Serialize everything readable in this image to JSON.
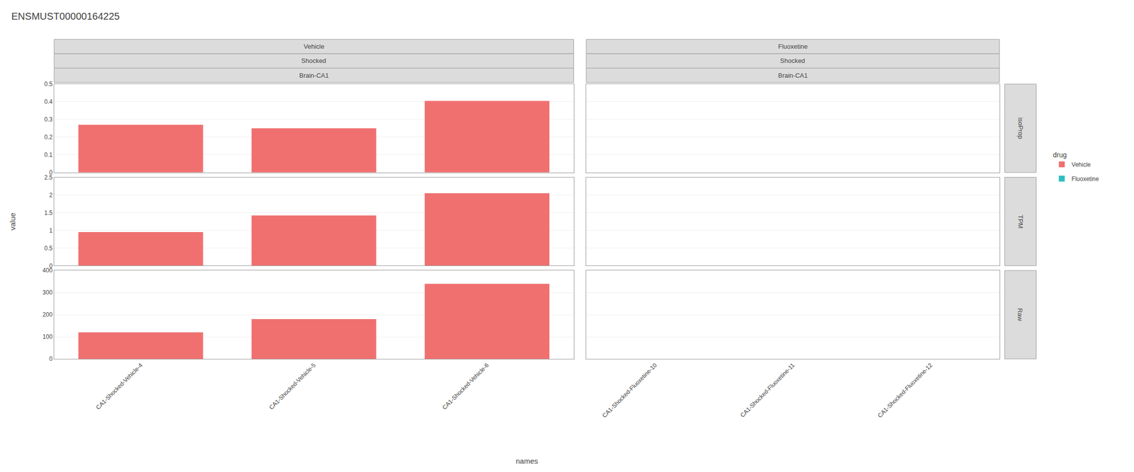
{
  "chart_data": {
    "type": "bar",
    "title": "ENSMUST00000164225",
    "xlabel": "names",
    "ylabel": "value",
    "legend_title": "drug",
    "grid": true,
    "series": [
      {
        "name": "Vehicle",
        "color": "#F07070",
        "header": [
          "Vehicle",
          "Shocked",
          "Brain-CA1"
        ],
        "categories": [
          "CA1-Shocked-Vehicle-4",
          "CA1-Shocked-Vehicle-5",
          "CA1-Shocked-Vehicle-6"
        ]
      },
      {
        "name": "Fluoxetine",
        "color": "#2ABFBF",
        "header": [
          "Fluoxetine",
          "Shocked",
          "Brain-CA1"
        ],
        "categories": [
          "CA1-Shocked-Fluoxetine-10",
          "CA1-Shocked-Fluoxetine-11",
          "CA1-Shocked-Fluoxetine-12"
        ]
      }
    ],
    "rows": [
      {
        "label": "isoProp",
        "ylim": [
          0,
          0.5
        ],
        "yticks": [
          0,
          0.1,
          0.2,
          0.3,
          0.4,
          0.5
        ],
        "values": [
          [
            0.27,
            0.25,
            0.405
          ],
          [
            0.0,
            0.0,
            0.0
          ]
        ]
      },
      {
        "label": "TPM",
        "ylim": [
          0,
          2.5
        ],
        "yticks": [
          0,
          0.5,
          1,
          1.5,
          2,
          2.5
        ],
        "values": [
          [
            0.95,
            1.42,
            2.05
          ],
          [
            0.0,
            0.0,
            0.0
          ]
        ]
      },
      {
        "label": "Raw",
        "ylim": [
          0,
          400
        ],
        "yticks": [
          0,
          100,
          200,
          300,
          400
        ],
        "values": [
          [
            120,
            180,
            340
          ],
          [
            0.0,
            0.0,
            0.0
          ]
        ]
      }
    ]
  }
}
